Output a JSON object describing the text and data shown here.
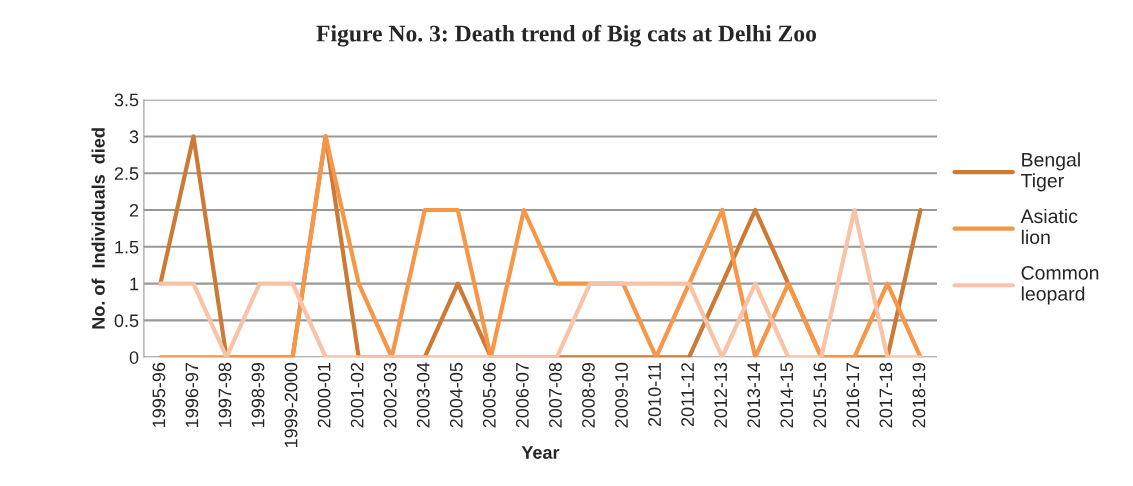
{
  "chart_data": {
    "type": "line",
    "title": "Figure No. 3: Death trend of Big cats at Delhi Zoo",
    "xlabel": "Year",
    "ylabel": "No. of  Individuals  died",
    "categories": [
      "1995-96",
      "1996-97",
      "1997-98",
      "1998-99",
      "1999-2000",
      "2000-01",
      "2001-02",
      "2002-03",
      "2003-04",
      "2004-05",
      "2005-06",
      "2006-07",
      "2007-08",
      "2008-09",
      "2009-10",
      "2010-11",
      "2011-12",
      "2012-13",
      "2013-14",
      "2014-15",
      "2015-16",
      "2016-17",
      "2017-18",
      "2018-19"
    ],
    "series": [
      {
        "name": "Bengal Tiger",
        "color": "#cc7a35",
        "values": [
          1,
          3,
          0,
          0,
          0,
          3,
          0,
          0,
          0,
          1,
          0,
          0,
          0,
          0,
          0,
          0,
          0,
          1,
          2,
          1,
          0,
          0,
          0,
          2
        ]
      },
      {
        "name": "Asiatic lion",
        "color": "#f79646",
        "values": [
          0,
          0,
          0,
          0,
          0,
          3,
          1,
          0,
          2,
          2,
          0,
          2,
          1,
          1,
          1,
          0,
          1,
          2,
          0,
          1,
          0,
          0,
          1,
          0
        ]
      },
      {
        "name": "Common leopard",
        "color": "#f8c3a6",
        "values": [
          1,
          1,
          0,
          1,
          1,
          0,
          0,
          0,
          0,
          0,
          0,
          0,
          0,
          1,
          1,
          1,
          1,
          0,
          1,
          0,
          0,
          2,
          0,
          0
        ]
      }
    ],
    "ylim": [
      0,
      3.5
    ],
    "yticks": [
      0,
      0.5,
      1,
      1.5,
      2,
      2.5,
      3,
      3.5
    ],
    "grid": "y",
    "legend": "right",
    "marker": "none",
    "line_style": "solid"
  }
}
